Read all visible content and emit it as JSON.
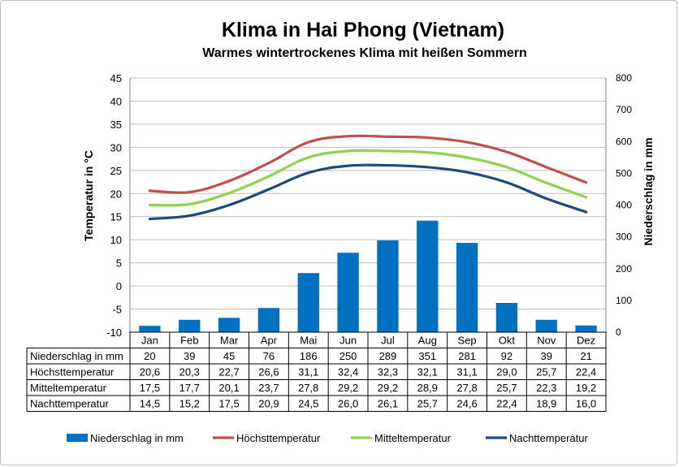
{
  "chart_data": {
    "type": "bar+line",
    "title": "Klima in Hai Phong (Vietnam)",
    "subtitle": "Warmes wintertrockenes Klima mit heißen Sommern",
    "ylabel_left": "Temperatur in °C",
    "ylabel_right": "Niederschlag in mm",
    "ylim_left": [
      -10,
      45
    ],
    "yticks_left": [
      -10,
      -5,
      0,
      5,
      10,
      15,
      20,
      25,
      30,
      35,
      40,
      45
    ],
    "ylim_right": [
      0,
      800
    ],
    "yticks_right": [
      0,
      100,
      200,
      300,
      400,
      500,
      600,
      700,
      800
    ],
    "categories": [
      "Jan",
      "Feb",
      "Mar",
      "Apr",
      "Mai",
      "Jun",
      "Jul",
      "Aug",
      "Sep",
      "Okt",
      "Nov",
      "Dez"
    ],
    "series": [
      {
        "name": "Niederschlag in mm",
        "type": "bar",
        "axis": "right",
        "color": "#0070c0",
        "values": [
          20,
          39,
          45,
          76,
          186,
          250,
          289,
          351,
          281,
          92,
          39,
          21
        ],
        "labels": [
          "20",
          "39",
          "45",
          "76",
          "186",
          "250",
          "289",
          "351",
          "281",
          "92",
          "39",
          "21"
        ]
      },
      {
        "name": "Höchsttemperatur",
        "type": "line",
        "axis": "left",
        "color": "#c0504d",
        "values": [
          20.6,
          20.3,
          22.7,
          26.6,
          31.1,
          32.4,
          32.3,
          32.1,
          31.1,
          29.0,
          25.7,
          22.4
        ],
        "labels": [
          "20,6",
          "20,3",
          "22,7",
          "26,6",
          "31,1",
          "32,4",
          "32,3",
          "32,1",
          "31,1",
          "29,0",
          "25,7",
          "22,4"
        ]
      },
      {
        "name": "Mitteltemperatur",
        "type": "line",
        "axis": "left",
        "color": "#92d050",
        "values": [
          17.5,
          17.7,
          20.1,
          23.7,
          27.8,
          29.2,
          29.2,
          28.9,
          27.8,
          25.7,
          22.3,
          19.2
        ],
        "labels": [
          "17,5",
          "17,7",
          "20,1",
          "23,7",
          "27,8",
          "29,2",
          "29,2",
          "28,9",
          "27,8",
          "25,7",
          "22,3",
          "19,2"
        ]
      },
      {
        "name": "Nachttemperatur",
        "type": "line",
        "axis": "left",
        "color": "#1f497d",
        "values": [
          14.5,
          15.2,
          17.5,
          20.9,
          24.5,
          26.0,
          26.1,
          25.7,
          24.6,
          22.4,
          18.9,
          16.0
        ],
        "labels": [
          "14,5",
          "15,2",
          "17,5",
          "20,9",
          "24,5",
          "26,0",
          "26,1",
          "25,7",
          "24,6",
          "22,4",
          "18,9",
          "16,0"
        ]
      }
    ],
    "grid": "horizontal",
    "legend_position": "bottom",
    "data_table": true
  }
}
